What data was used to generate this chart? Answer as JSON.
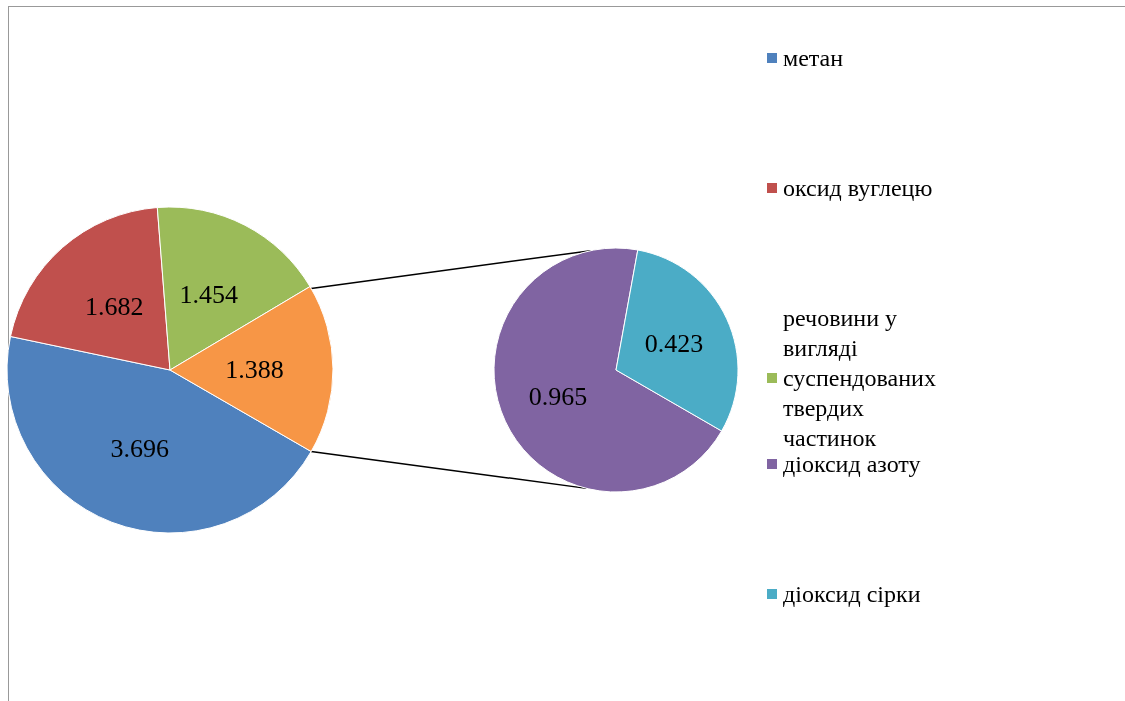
{
  "chart_data": [
    {
      "type": "pie",
      "categories": [
        "метан",
        "оксид вуглецю",
        "речовини у вигляді суспендованих твердих частинок",
        null
      ],
      "values": [
        3.696,
        1.682,
        1.454,
        1.388
      ],
      "colors": [
        "#4f81bd",
        "#c0504d",
        "#9bbb59",
        "#f79646"
      ],
      "data_labels": true,
      "legend": "right"
    },
    {
      "type": "pie",
      "categories": [
        "діоксид азоту",
        "діоксид сірки"
      ],
      "values": [
        0.965,
        0.423
      ],
      "colors": [
        "#8064a2",
        "#4bacc6"
      ],
      "data_labels": true,
      "legend": "right"
    }
  ]
}
